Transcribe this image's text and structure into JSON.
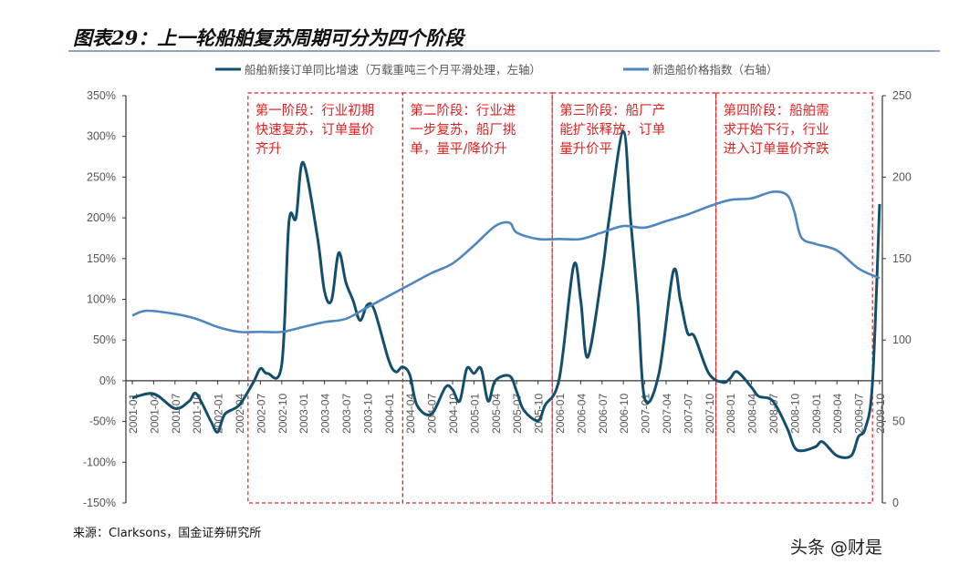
{
  "title": "图表29：上一轮船舶复苏周期可分为四个阶段",
  "source": "来源：Clarksons，国金证券研究所",
  "watermark": "头条 @财是",
  "chart_data": {
    "type": "line",
    "title": "图表29：上一轮船舶复苏周期可分为四个阶段",
    "legend_position": "top",
    "grid": false,
    "colors": {
      "orders": "#134f6c",
      "price": "#4f86c0",
      "phase_box": "#e02020"
    },
    "left_axis": {
      "ylim": [
        -150,
        350
      ],
      "ticks": [
        "350%",
        "300%",
        "250%",
        "200%",
        "150%",
        "100%",
        "50%",
        "0%",
        "-50%",
        "-100%",
        "-150%"
      ]
    },
    "right_axis": {
      "ylim": [
        0,
        250
      ],
      "ticks": [
        "250",
        "200",
        "150",
        "100",
        "50",
        "0"
      ]
    },
    "x_ticks": [
      "2001-01",
      "2001-04",
      "2001-07",
      "2001-10",
      "2002-01",
      "2002-04",
      "2002-07",
      "2002-10",
      "2003-01",
      "2003-04",
      "2003-07",
      "2003-10",
      "2004-01",
      "2004-04",
      "2004-07",
      "2004-10",
      "2005-01",
      "2005-04",
      "2005-07",
      "2005-10",
      "2006-01",
      "2006-04",
      "2006-07",
      "2006-10",
      "2007-01",
      "2007-04",
      "2007-07",
      "2007-10",
      "2008-01",
      "2008-04",
      "2008-07",
      "2008-10",
      "2009-01",
      "2009-04",
      "2009-07",
      "2009-10"
    ],
    "series": [
      {
        "name": "船舶新接订单同比增速（万载重吨三个月平滑处理，左轴）",
        "axis": "left",
        "points": [
          [
            "2001-01",
            -21
          ],
          [
            "2001-04",
            -16
          ],
          [
            "2001-07",
            -34
          ],
          [
            "2001-09",
            -25
          ],
          [
            "2001-10",
            -16
          ],
          [
            "2001-12",
            -49
          ],
          [
            "2002-01",
            -63
          ],
          [
            "2002-02",
            -41
          ],
          [
            "2002-04",
            -30
          ],
          [
            "2002-06",
            -2
          ],
          [
            "2002-07",
            15
          ],
          [
            "2002-08",
            9
          ],
          [
            "2002-10",
            20
          ],
          [
            "2002-11",
            194
          ],
          [
            "2002-12",
            200
          ],
          [
            "2003-01",
            268
          ],
          [
            "2003-03",
            177
          ],
          [
            "2003-04",
            110
          ],
          [
            "2003-05",
            99
          ],
          [
            "2003-06",
            157
          ],
          [
            "2003-07",
            121
          ],
          [
            "2003-08",
            99
          ],
          [
            "2003-09",
            74
          ],
          [
            "2003-10",
            93
          ],
          [
            "2003-11",
            87
          ],
          [
            "2004-01",
            26
          ],
          [
            "2004-02",
            11
          ],
          [
            "2004-03",
            17
          ],
          [
            "2004-04",
            7
          ],
          [
            "2004-05",
            -30
          ],
          [
            "2004-07",
            -41
          ],
          [
            "2004-09",
            -8
          ],
          [
            "2004-10",
            -11
          ],
          [
            "2004-11",
            -25
          ],
          [
            "2004-12",
            15
          ],
          [
            "2005-01",
            9
          ],
          [
            "2005-02",
            15
          ],
          [
            "2005-03",
            -25
          ],
          [
            "2005-04",
            0
          ],
          [
            "2005-06",
            6
          ],
          [
            "2005-07",
            -13
          ],
          [
            "2005-08",
            -36
          ],
          [
            "2005-10",
            -49
          ],
          [
            "2005-11",
            -30
          ],
          [
            "2006-01",
            3
          ],
          [
            "2006-03",
            141
          ],
          [
            "2006-04",
            99
          ],
          [
            "2006-05",
            29
          ],
          [
            "2006-07",
            132
          ],
          [
            "2006-08",
            199
          ],
          [
            "2006-10",
            306
          ],
          [
            "2006-11",
            199
          ],
          [
            "2006-12",
            99
          ],
          [
            "2007-01",
            -22
          ],
          [
            "2007-03",
            9
          ],
          [
            "2007-05",
            134
          ],
          [
            "2007-06",
            99
          ],
          [
            "2007-07",
            59
          ],
          [
            "2007-08",
            54
          ],
          [
            "2007-10",
            9
          ],
          [
            "2007-12",
            -2
          ],
          [
            "2008-01",
            3
          ],
          [
            "2008-02",
            11
          ],
          [
            "2008-04",
            -8
          ],
          [
            "2008-05",
            -19
          ],
          [
            "2008-07",
            -25
          ],
          [
            "2008-09",
            -58
          ],
          [
            "2008-10",
            -81
          ],
          [
            "2008-11",
            -86
          ],
          [
            "2009-01",
            -81
          ],
          [
            "2009-02",
            -75
          ],
          [
            "2009-04",
            -92
          ],
          [
            "2009-06",
            -92
          ],
          [
            "2009-07",
            -69
          ],
          [
            "2009-08",
            -58
          ],
          [
            "2009-09",
            -2
          ],
          [
            "2009-10",
            217
          ]
        ]
      },
      {
        "name": "新造船价格指数（右轴）",
        "axis": "right",
        "points": [
          [
            "2001-01",
            115
          ],
          [
            "2001-03",
            118
          ],
          [
            "2001-07",
            116
          ],
          [
            "2001-10",
            113
          ],
          [
            "2002-01",
            108
          ],
          [
            "2002-04",
            105
          ],
          [
            "2002-07",
            105
          ],
          [
            "2002-10",
            105
          ],
          [
            "2003-01",
            108
          ],
          [
            "2003-04",
            111
          ],
          [
            "2003-07",
            113
          ],
          [
            "2003-10",
            120
          ],
          [
            "2004-01",
            127
          ],
          [
            "2004-04",
            134
          ],
          [
            "2004-07",
            141
          ],
          [
            "2004-10",
            147
          ],
          [
            "2005-01",
            158
          ],
          [
            "2005-04",
            170
          ],
          [
            "2005-06",
            172
          ],
          [
            "2005-07",
            166
          ],
          [
            "2005-10",
            162
          ],
          [
            "2006-01",
            162
          ],
          [
            "2006-04",
            162
          ],
          [
            "2006-07",
            166
          ],
          [
            "2006-10",
            170
          ],
          [
            "2007-01",
            169
          ],
          [
            "2007-04",
            173
          ],
          [
            "2007-07",
            177
          ],
          [
            "2007-10",
            182
          ],
          [
            "2008-01",
            186
          ],
          [
            "2008-04",
            187
          ],
          [
            "2008-07",
            191
          ],
          [
            "2008-09",
            189
          ],
          [
            "2008-10",
            179
          ],
          [
            "2008-11",
            163
          ],
          [
            "2009-01",
            159
          ],
          [
            "2009-04",
            155
          ],
          [
            "2009-07",
            144
          ],
          [
            "2009-10",
            138
          ]
        ]
      }
    ],
    "phases": [
      {
        "start": "2002-05",
        "end": "2004-03",
        "label": [
          "第一阶段：行业初期",
          "快速复苏，订单量价",
          "齐升"
        ]
      },
      {
        "start": "2004-03",
        "end": "2005-12",
        "label": [
          "第二阶段：行业进",
          "一步复苏，船厂挑",
          "单，量平/降价升"
        ]
      },
      {
        "start": "2005-12",
        "end": "2007-11",
        "label": [
          "第三阶段：船厂产",
          "能扩张释放，订单",
          "量升价平"
        ]
      },
      {
        "start": "2007-11",
        "end": "2009-09",
        "label": [
          "第四阶段：船舶需",
          "求开始下行，行业",
          "进入订单量价齐跌"
        ]
      }
    ]
  }
}
